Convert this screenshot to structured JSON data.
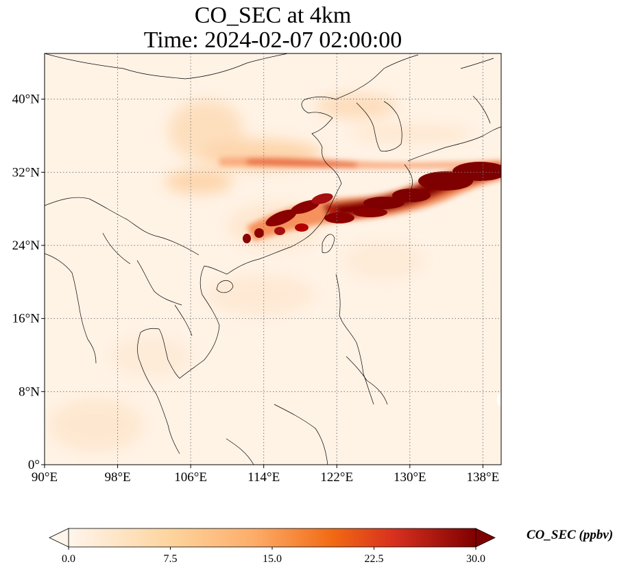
{
  "title": {
    "line1": "CO_SEC at 4km",
    "line2": "Time: 2024-02-07 02:00:00"
  },
  "map": {
    "lon_ticks": [
      "90°E",
      "98°E",
      "106°E",
      "114°E",
      "122°E",
      "130°E",
      "138°E"
    ],
    "lat_ticks": [
      "0°",
      "8°N",
      "16°N",
      "24°N",
      "32°N",
      "40°N"
    ]
  },
  "colorbar": {
    "label": "CO_SEC (ppbv)",
    "ticks": [
      "0.0",
      "7.5",
      "15.0",
      "22.5",
      "30.0"
    ],
    "colors": [
      "#fff5eb",
      "#fdd49e",
      "#fdae6b",
      "#f16913",
      "#d7301f",
      "#7f0000"
    ]
  }
}
